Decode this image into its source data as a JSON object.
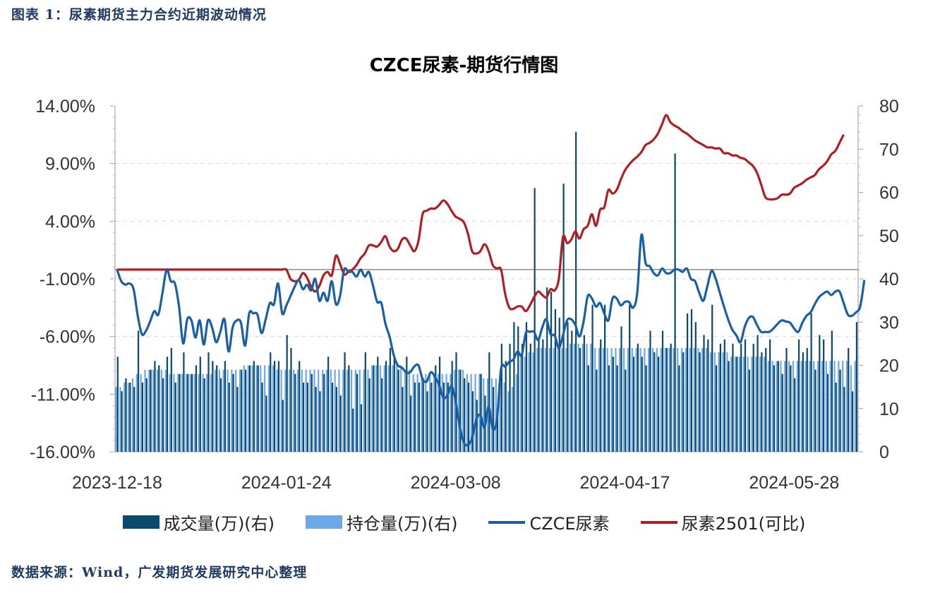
{
  "figure_title": "图表 1：尿素期货主力合约近期波动情况",
  "source_text": "数据来源：Wind，广发期货发展研究中心整理",
  "colors": {
    "volume": "#0b4a6e",
    "open_interest": "#6fa8e8",
    "czce_line": "#1a5fa6",
    "contract_line": "#b01e23"
  },
  "chart_data": {
    "type": "bar+line",
    "title": "CZCE尿素-期货行情图",
    "x_tick_labels": [
      "2023-12-18",
      "2024-01-24",
      "2024-03-08",
      "2024-04-17",
      "2024-05-28"
    ],
    "left_axis": {
      "range": [
        -16,
        14
      ],
      "ticks": [
        "14.00%",
        "9.00%",
        "4.00%",
        "-1.00%",
        "-6.00%",
        "-11.00%",
        "-16.00%"
      ]
    },
    "right_axis": {
      "range": [
        0,
        80
      ],
      "ticks": [
        "80",
        "70",
        "60",
        "50",
        "40",
        "30",
        "20",
        "10",
        "0"
      ]
    },
    "legend": [
      "成交量(万)(右)",
      "持仓量(万)(右)",
      "CZCE尿素",
      "尿素2501(可比)"
    ],
    "series": [
      {
        "name": "成交量(万)(右)",
        "axis": "right",
        "kind": "bar",
        "values": [
          22,
          14,
          17,
          16,
          15,
          28,
          16,
          17,
          19,
          21,
          20,
          17,
          22,
          24,
          16,
          18,
          23,
          18,
          18,
          20,
          22,
          17,
          23,
          21,
          20,
          17,
          21,
          16,
          18,
          15,
          19,
          19,
          20,
          21,
          20,
          16,
          13,
          23,
          21,
          21,
          12,
          27,
          24,
          18,
          21,
          16,
          16,
          18,
          15,
          14,
          18,
          22,
          16,
          15,
          13,
          23,
          20,
          10,
          18,
          11,
          23,
          17,
          20,
          22,
          17,
          21,
          24,
          22,
          19,
          15,
          22,
          13,
          16,
          16,
          17,
          14,
          16,
          20,
          22,
          16,
          16,
          21,
          23,
          19,
          17,
          16,
          14,
          12,
          18,
          13,
          23,
          15,
          10,
          25,
          21,
          25,
          30,
          29,
          25,
          30,
          25,
          61,
          26,
          26,
          38,
          37,
          33,
          31,
          62,
          30,
          28,
          74,
          24,
          27,
          20,
          34,
          19,
          26,
          34,
          20,
          22,
          20,
          29,
          19,
          34,
          22,
          25,
          22,
          20,
          28,
          23,
          22,
          28,
          24,
          25,
          69,
          20,
          23,
          32,
          33,
          30,
          23,
          27,
          26,
          34,
          20,
          25,
          26,
          21,
          25,
          22,
          25,
          26,
          19,
          25,
          27,
          23,
          24,
          26,
          20,
          21,
          18,
          24,
          20,
          17,
          26,
          23,
          24,
          32,
          19,
          27,
          26,
          18,
          28,
          16,
          19,
          15,
          24,
          14,
          30
        ]
      },
      {
        "name": "持仓量(万)(右)",
        "axis": "right",
        "kind": "bar",
        "values": [
          15,
          15,
          16,
          16,
          17,
          18,
          18,
          19,
          19,
          19,
          19,
          19,
          19,
          18,
          18,
          18,
          18,
          18,
          18,
          18,
          18,
          18,
          18,
          18,
          19,
          19,
          19,
          19,
          19,
          19,
          19,
          20,
          20,
          20,
          20,
          20,
          20,
          20,
          20,
          19,
          19,
          19,
          19,
          19,
          19,
          19,
          19,
          19,
          19,
          19,
          19,
          19,
          19,
          19,
          19,
          19,
          19,
          19,
          19,
          19,
          19,
          19,
          20,
          20,
          20,
          20,
          20,
          20,
          20,
          20,
          19,
          19,
          18,
          18,
          18,
          18,
          18,
          18,
          18,
          18,
          18,
          18,
          19,
          19,
          19,
          18,
          18,
          18,
          18,
          17,
          17,
          17,
          17,
          17,
          16,
          14,
          15,
          18,
          22,
          22,
          23,
          23,
          24,
          24,
          24,
          24,
          24,
          24,
          24,
          24,
          25,
          25,
          25,
          25,
          25,
          25,
          24,
          24,
          24,
          24,
          24,
          24,
          24,
          24,
          24,
          24,
          24,
          24,
          24,
          24,
          24,
          24,
          24,
          24,
          24,
          24,
          24,
          24,
          24,
          24,
          24,
          24,
          24,
          24,
          23,
          23,
          23,
          23,
          23,
          22,
          22,
          22,
          22,
          22,
          22,
          22,
          22,
          22,
          21,
          21,
          21,
          21,
          21,
          21,
          21,
          21,
          21,
          21,
          21,
          21,
          21,
          21,
          21,
          21,
          21,
          21,
          21,
          21,
          20,
          21
        ]
      },
      {
        "name": "CZCE尿素",
        "axis": "left",
        "kind": "line",
        "values": [
          -0.2,
          -1.2,
          -1.5,
          -1.4,
          -1.9,
          -4.2,
          -5.8,
          -5.5,
          -4.7,
          -3.8,
          -4.1,
          -2.2,
          -0.2,
          -1.2,
          -1.4,
          -3.4,
          -6.6,
          -4.5,
          -4.6,
          -6.1,
          -4.6,
          -6.7,
          -4.6,
          -5.2,
          -6.5,
          -5.6,
          -4.5,
          -7.3,
          -5.2,
          -4.6,
          -4.8,
          -6.8,
          -4.0,
          -4.0,
          -4.1,
          -5.7,
          -4.5,
          -3.1,
          -3.2,
          -1.4,
          -4.0,
          -3.3,
          -2.5,
          -1.7,
          -1.1,
          -1.9,
          -1.5,
          -2.0,
          -1.0,
          -2.9,
          -2.2,
          -2.9,
          -1.2,
          -3.2,
          -2.5,
          -0.2,
          -0.4,
          -0.4,
          -0.8,
          -0.2,
          -0.8,
          -0.4,
          -1.6,
          -3.0,
          -3.1,
          -4.9,
          -6.0,
          -7.6,
          -8.5,
          -8.7,
          -9.1,
          -9.1,
          -8.6,
          -8.5,
          -9.7,
          -9.9,
          -9.1,
          -9.5,
          -10.2,
          -11.3,
          -11.1,
          -10.3,
          -11.6,
          -13.8,
          -15.2,
          -15.4,
          -14.8,
          -13.2,
          -12.8,
          -13.9,
          -12.1,
          -14.0,
          -13.2,
          -8.8,
          -8.6,
          -8.2,
          -8.0,
          -7.3,
          -7.6,
          -5.7,
          -5.6,
          -5.6,
          -6.3,
          -5.2,
          -4.5,
          -5.8,
          -5.9,
          -7.0,
          -5.9,
          -4.6,
          -4.5,
          -5.0,
          -6.0,
          -4.7,
          -2.5,
          -2.7,
          -3.4,
          -3.1,
          -4.0,
          -4.6,
          -2.7,
          -2.7,
          -3.3,
          -3.0,
          -3.0,
          -3.5,
          -2.2,
          2.8,
          0.4,
          0.1,
          -0.5,
          -0.7,
          -0.1,
          -0.5,
          -0.5,
          -0.2,
          -0.2,
          -0.4,
          -0.1,
          -1.0,
          -1.2,
          -2.2,
          -2.9,
          -1.6,
          -0.3,
          -1.0,
          -2.2,
          -3.4,
          -4.5,
          -5.4,
          -5.9,
          -6.5,
          -5.2,
          -4.4,
          -4.3,
          -5.0,
          -5.6,
          -5.6,
          -5.6,
          -5.3,
          -4.9,
          -4.6,
          -4.7,
          -4.8,
          -5.3,
          -5.6,
          -4.8,
          -4.2,
          -3.9,
          -3.2,
          -2.6,
          -2.3,
          -2.1,
          -2.4,
          -2.1,
          -2.1,
          -3.1,
          -4.1,
          -4.2,
          -3.9,
          -3.4,
          -1.1
        ]
      },
      {
        "name": "尿素2501(可比)",
        "axis": "left",
        "kind": "line",
        "values": [
          -0.2,
          -0.2,
          -0.2,
          -0.2,
          -0.2,
          -0.2,
          -0.2,
          -0.2,
          -0.2,
          -0.2,
          -0.2,
          -0.2,
          -0.2,
          -0.2,
          -0.2,
          -0.2,
          -0.2,
          -0.2,
          -0.2,
          -0.2,
          -0.2,
          -0.2,
          -0.2,
          -0.2,
          -0.2,
          -0.2,
          -0.2,
          -0.2,
          -0.2,
          -0.2,
          -0.2,
          -0.2,
          -0.2,
          -0.2,
          -0.2,
          -0.2,
          -0.2,
          -0.2,
          -0.2,
          -0.2,
          -0.2,
          -0.2,
          -1.0,
          -1.2,
          -1.1,
          -0.5,
          -0.9,
          -1.7,
          -2.1,
          -1.6,
          -0.7,
          -0.4,
          -0.7,
          1.0,
          0.3,
          -0.6,
          -0.4,
          -0.2,
          0.2,
          0.8,
          1.2,
          1.9,
          1.9,
          1.8,
          2.2,
          2.7,
          1.8,
          1.4,
          1.6,
          2.4,
          2.5,
          1.9,
          1.4,
          2.3,
          4.6,
          4.9,
          5.1,
          5.1,
          5.4,
          5.8,
          5.5,
          4.9,
          4.4,
          4.2,
          3.9,
          2.9,
          1.4,
          1.2,
          1.4,
          2.0,
          1.4,
          0.2,
          -0.1,
          -0.2,
          -2.3,
          -3.5,
          -3.6,
          -3.4,
          -3.4,
          -3.8,
          -3.3,
          -2.6,
          -2.1,
          -2.4,
          -2.6,
          -1.9,
          -2.0,
          -1.0,
          2.6,
          2.1,
          2.4,
          3.1,
          2.5,
          3.3,
          3.6,
          4.6,
          3.6,
          5.0,
          5.2,
          6.7,
          6.4,
          6.7,
          7.6,
          8.4,
          8.9,
          9.3,
          9.6,
          10.0,
          10.6,
          10.8,
          11.1,
          11.6,
          12.4,
          13.2,
          12.6,
          12.3,
          12.1,
          11.8,
          11.6,
          11.3,
          11.0,
          10.8,
          10.6,
          10.4,
          10.4,
          10.3,
          10.3,
          9.9,
          9.9,
          9.7,
          9.7,
          9.5,
          9.4,
          9.1,
          8.8,
          8.2,
          7.2,
          6.1,
          5.9,
          5.9,
          6.0,
          6.3,
          6.3,
          6.4,
          6.9,
          7.1,
          7.3,
          7.6,
          7.8,
          8.0,
          8.5,
          8.8,
          9.2,
          9.8,
          10.1,
          10.8,
          11.5
        ]
      }
    ]
  }
}
